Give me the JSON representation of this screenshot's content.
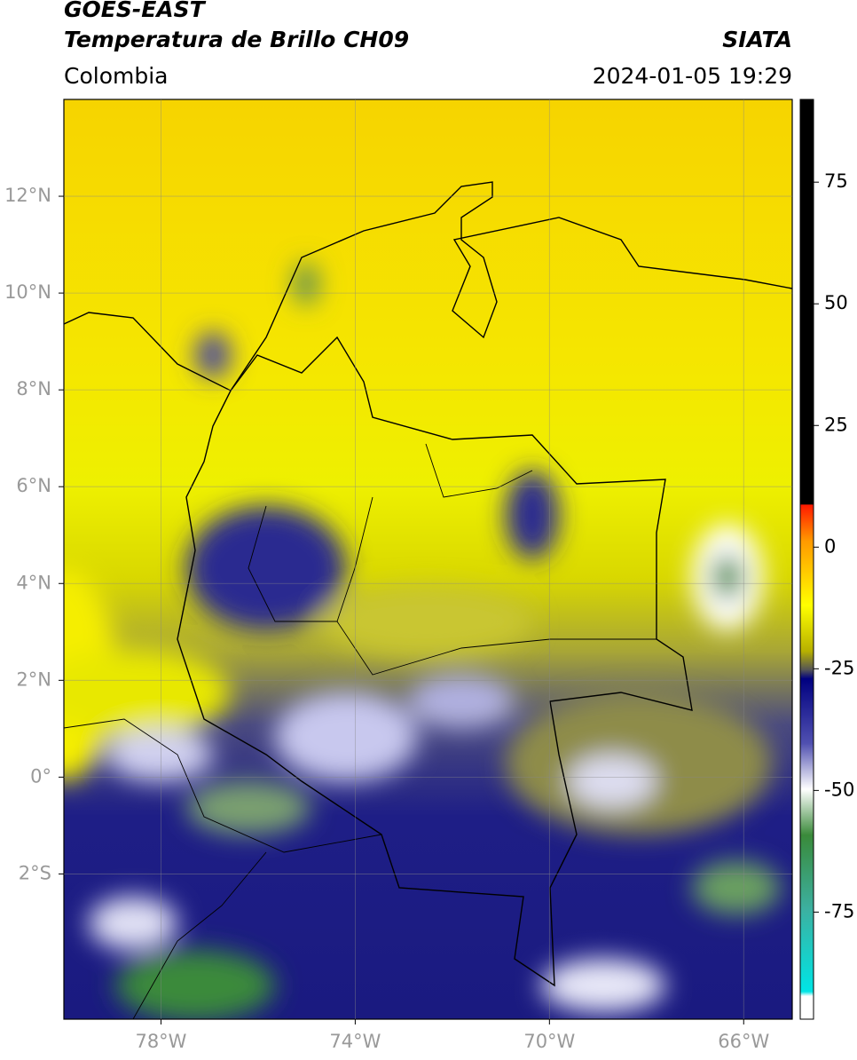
{
  "header": {
    "title": "GOES-EAST",
    "subtitle": "Temperatura de Brillo CH09",
    "source": "SIATA",
    "region": "Colombia",
    "datetime": "2024-01-05 19:29"
  },
  "map": {
    "xlim": [
      -80,
      -65
    ],
    "ylim": [
      -5,
      14
    ],
    "xticks": [
      {
        "value": -78,
        "label": "78°W"
      },
      {
        "value": -74,
        "label": "74°W"
      },
      {
        "value": -70,
        "label": "70°W"
      },
      {
        "value": -66,
        "label": "66°W"
      }
    ],
    "yticks": [
      {
        "value": 12,
        "label": "12°N"
      },
      {
        "value": 10,
        "label": "10°N"
      },
      {
        "value": 8,
        "label": "8°N"
      },
      {
        "value": 6,
        "label": "6°N"
      },
      {
        "value": 4,
        "label": "4°N"
      },
      {
        "value": 2,
        "label": "2°N"
      },
      {
        "value": 0,
        "label": "0°"
      },
      {
        "value": -2,
        "label": "2°S"
      }
    ],
    "grid": true
  },
  "colorbar": {
    "lim": [
      -97,
      92
    ],
    "ticks": [
      75,
      50,
      25,
      0,
      -25,
      -50,
      -75
    ]
  }
}
